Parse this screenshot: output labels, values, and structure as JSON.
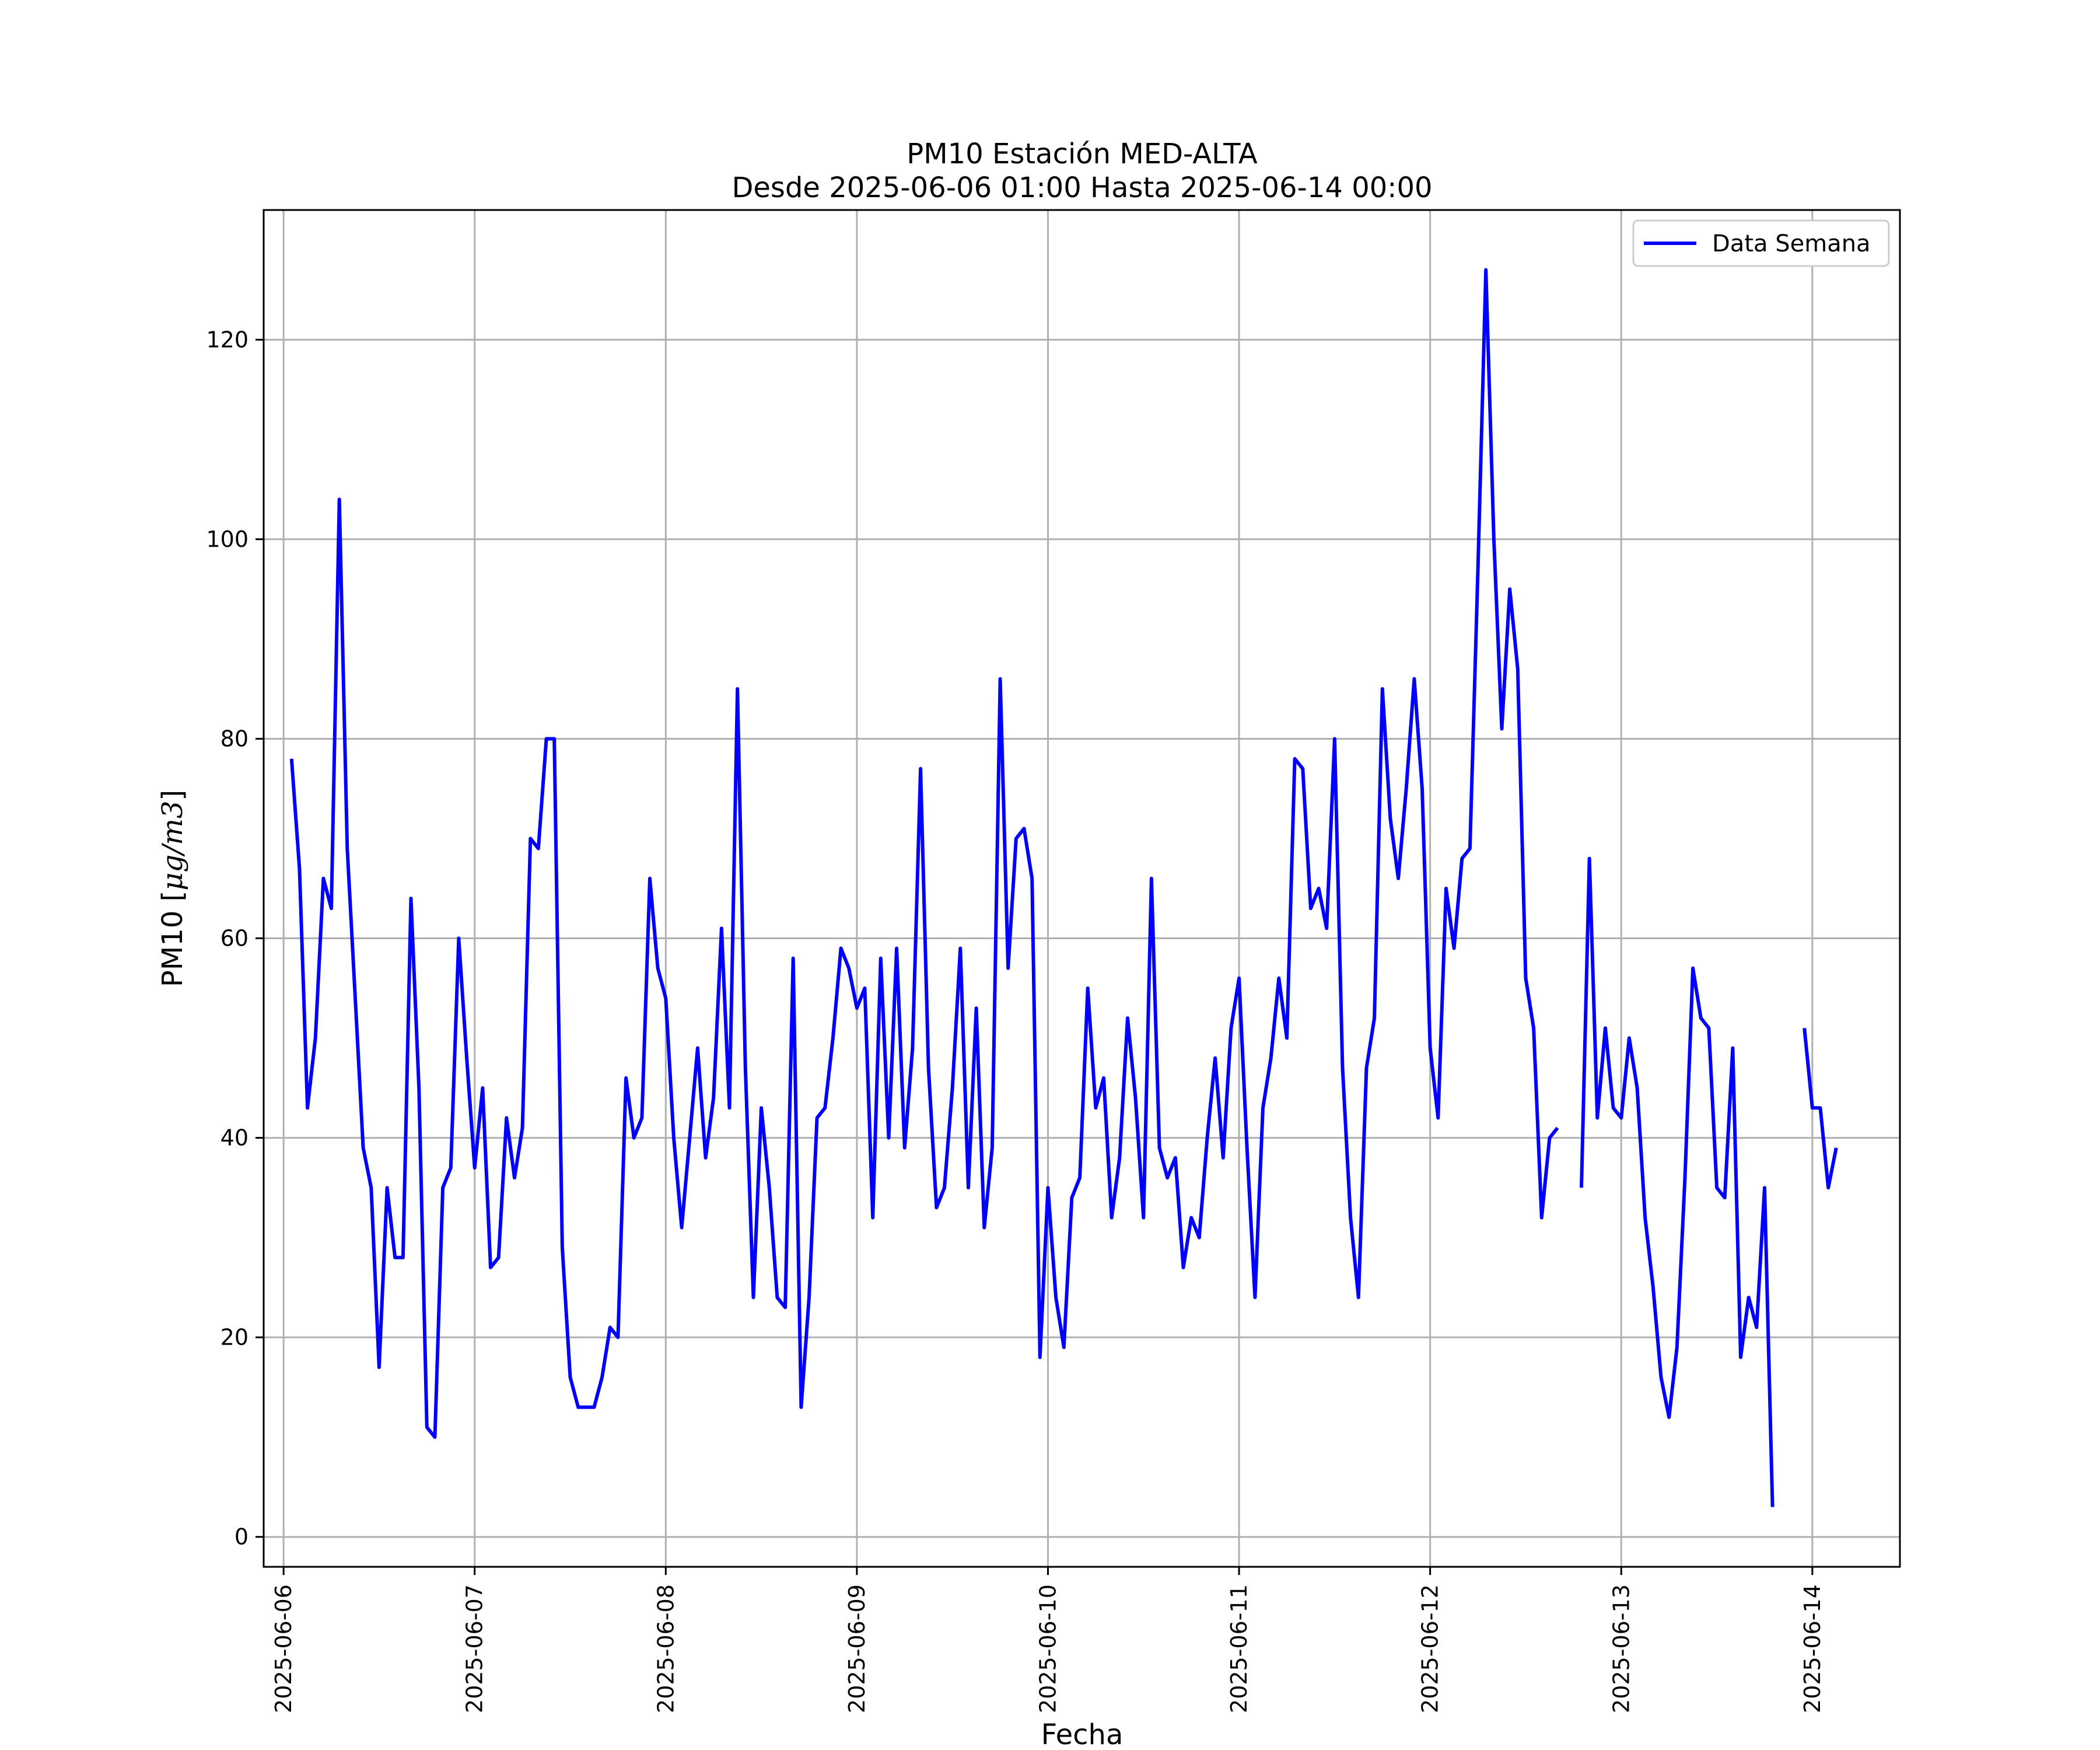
{
  "chart_data": {
    "type": "line",
    "title": "PM10 Estación MED-ALTA",
    "subtitle": "Desde 2025-06-06 01:00 Hasta 2025-06-14 00:00",
    "xlabel": "Fecha",
    "ylabel_prefix": "PM10 [",
    "ylabel_math": "μg/m3",
    "ylabel_suffix": "]",
    "xlim": [
      "2025-06-05 21:30",
      "2025-06-14 11:00"
    ],
    "ylim": [
      -3,
      133
    ],
    "grid": true,
    "legend_position": "upper right",
    "x_ticks": [
      "2025-06-06",
      "2025-06-07",
      "2025-06-08",
      "2025-06-09",
      "2025-06-10",
      "2025-06-11",
      "2025-06-12",
      "2025-06-13",
      "2025-06-14"
    ],
    "y_ticks": [
      0,
      20,
      40,
      60,
      80,
      100,
      120
    ],
    "series": [
      {
        "name": "Data Semana",
        "color": "#0000ff",
        "x_start": "2025-06-06 01:00",
        "x_step": "1 hour",
        "values": [
          78,
          67,
          43,
          50,
          66,
          63,
          104,
          69,
          54,
          39,
          35,
          17,
          35,
          28,
          28,
          64,
          45,
          11,
          10,
          35,
          37,
          60,
          48,
          37,
          45,
          27,
          28,
          42,
          36,
          41,
          70,
          69,
          80,
          80,
          29,
          16,
          13,
          13,
          13,
          16,
          21,
          20,
          46,
          40,
          42,
          66,
          57,
          54,
          40,
          31,
          40,
          49,
          38,
          44,
          61,
          43,
          85,
          47,
          24,
          43,
          35,
          24,
          23,
          58,
          13,
          24,
          42,
          43,
          50,
          59,
          57,
          53,
          55,
          32,
          58,
          40,
          59,
          39,
          49,
          77,
          47,
          33,
          35,
          45,
          59,
          35,
          53,
          31,
          39,
          86,
          57,
          70,
          71,
          66,
          18,
          35,
          24,
          19,
          34,
          36,
          55,
          43,
          46,
          32,
          38,
          52,
          44,
          32,
          66,
          39,
          36,
          38,
          27,
          32,
          30,
          40,
          48,
          38,
          51,
          56,
          39,
          24,
          43,
          48,
          56,
          50,
          78,
          77,
          63,
          65,
          61,
          80,
          47,
          32,
          24,
          47,
          52,
          85,
          72,
          66,
          75,
          86,
          75,
          49,
          42,
          65,
          59,
          68,
          69,
          97,
          127,
          100,
          81,
          95,
          87,
          56,
          51,
          32,
          40,
          41,
          null,
          null,
          35,
          68,
          42,
          51,
          43,
          42,
          50,
          45,
          32,
          25,
          16,
          12,
          19,
          36,
          57,
          52,
          51,
          35,
          34,
          49,
          18,
          24,
          21,
          35,
          3,
          null,
          null,
          null,
          51,
          43,
          43,
          35,
          39
        ]
      }
    ]
  }
}
